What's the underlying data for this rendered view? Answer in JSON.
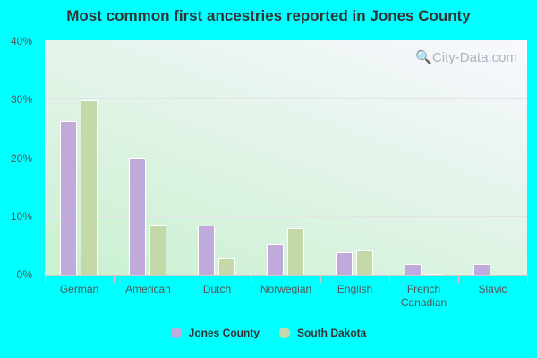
{
  "title": "Most common first ancestries reported in Jones County",
  "watermark": "City-Data.com",
  "colors": {
    "jones": "#c0aadb",
    "sd": "#c4d9a8"
  },
  "y_ticks": [
    "40%",
    "30%",
    "20%",
    "10%",
    "0%"
  ],
  "legend": [
    {
      "label": "Jones County",
      "color": "#c0aadb"
    },
    {
      "label": "South Dakota",
      "color": "#c4d9a8"
    }
  ],
  "chart_data": {
    "type": "bar",
    "title": "Most common first ancestries reported in Jones County",
    "xlabel": "",
    "ylabel": "",
    "ylim": [
      0,
      40
    ],
    "y_tick_labels": [
      "0%",
      "10%",
      "20%",
      "30%",
      "40%"
    ],
    "grid": true,
    "legend_position": "bottom",
    "categories": [
      "German",
      "American",
      "Dutch",
      "Norwegian",
      "English",
      "French Canadian",
      "Slavic"
    ],
    "series": [
      {
        "name": "Jones County",
        "color": "#c0aadb",
        "values": [
          26.3,
          19.8,
          8.4,
          5.2,
          3.8,
          1.8,
          1.8
        ]
      },
      {
        "name": "South Dakota",
        "color": "#c4d9a8",
        "values": [
          29.8,
          8.5,
          2.9,
          7.9,
          4.3,
          0.2,
          0.0
        ]
      }
    ]
  }
}
